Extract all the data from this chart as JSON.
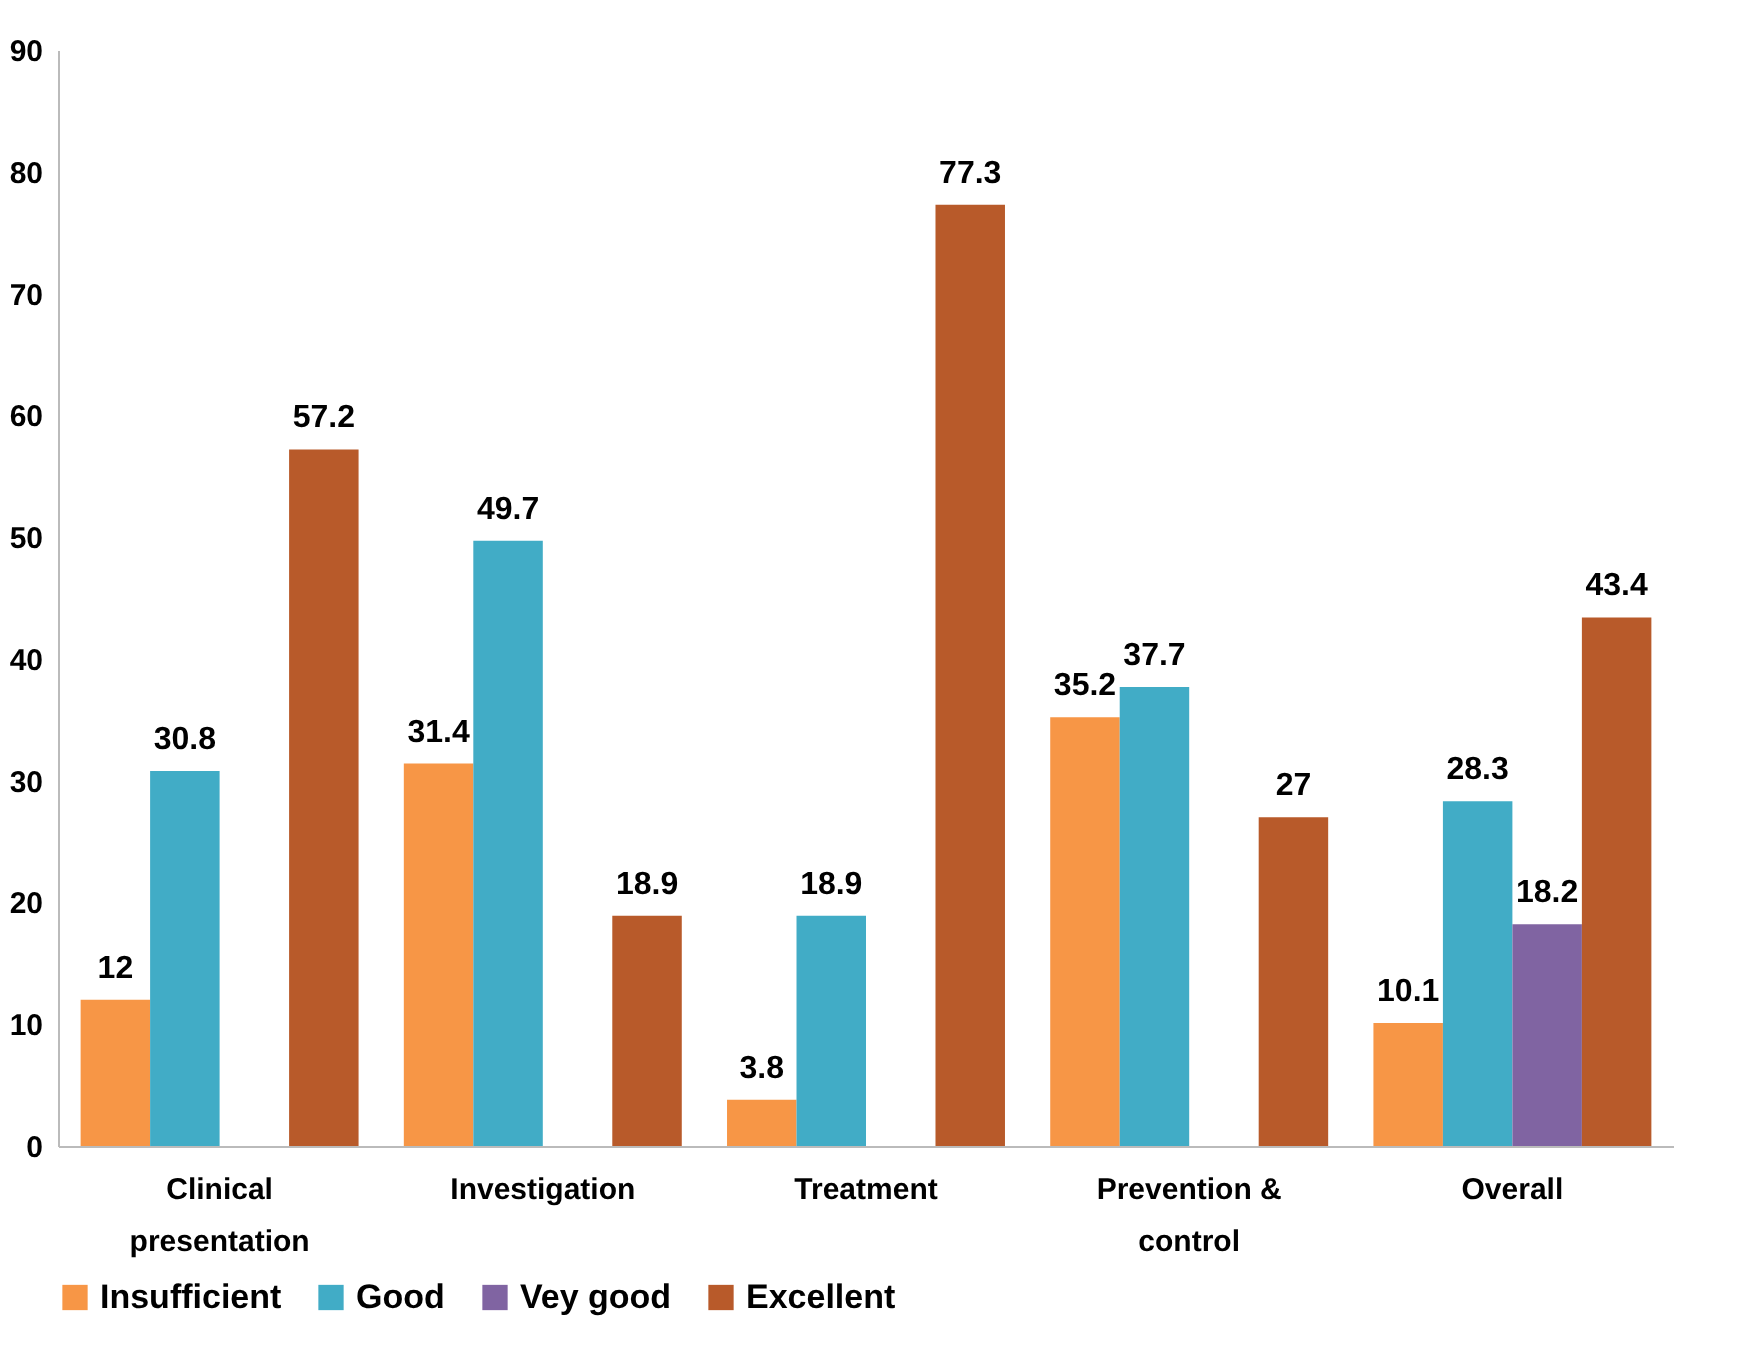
{
  "chart_data": {
    "type": "bar",
    "categories": [
      "Clinical presentation",
      "Investigation",
      "Treatment",
      "Prevention & control",
      "Overall"
    ],
    "series": [
      {
        "name": "Insufficient",
        "color": "#f79646",
        "values": [
          12,
          31.4,
          3.8,
          35.2,
          10.1
        ]
      },
      {
        "name": "Good",
        "color": "#41acc6",
        "values": [
          30.8,
          49.7,
          18.9,
          37.7,
          28.3
        ]
      },
      {
        "name": "Vey good",
        "color": "#8064a2",
        "values": [
          null,
          null,
          null,
          null,
          18.2
        ]
      },
      {
        "name": "Excellent",
        "color": "#b85a2a",
        "values": [
          57.2,
          18.9,
          77.3,
          27,
          43.4
        ]
      }
    ],
    "ylim": [
      0,
      90
    ],
    "yticks": [
      0,
      10,
      20,
      30,
      40,
      50,
      60,
      70,
      80,
      90
    ],
    "grid": false,
    "legend": "bottom",
    "data_labels": true
  }
}
